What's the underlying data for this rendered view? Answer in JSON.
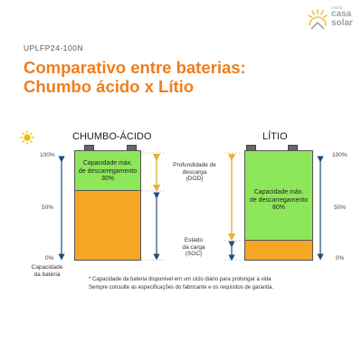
{
  "header": {
    "model": "UPLFP24-100N",
    "title_line1": "Comparativo entre baterias:",
    "title_line2": "Chumbo ácido x Lítio"
  },
  "logo": {
    "small": "minha",
    "line1": "casa",
    "line2": "solar"
  },
  "batteries": {
    "lead": {
      "title": "CHUMBO-ÁCIDO",
      "capacity_line1": "Capacidade máx.",
      "capacity_line2": "de descarregamento",
      "capacity_value": "30%",
      "dod_fraction": 0.3
    },
    "lithium": {
      "title": "LÍTIO",
      "capacity_line1": "Capacidade máx.",
      "capacity_line2": "de descarregamento",
      "capacity_value": "80%",
      "dod_fraction": 0.8
    }
  },
  "scale": {
    "top": "100%",
    "mid": "50%",
    "bottom": "0%"
  },
  "labels": {
    "dod_line1": "Profundidade de",
    "dod_line2": "descarga",
    "dod_line3": "(DOD)",
    "soc_line1": "Estado",
    "soc_line2": "da carga",
    "soc_line3": "(SOC)",
    "battery_capacity_line1": "Capacidade",
    "battery_capacity_line2": "da bateria"
  },
  "notes": {
    "line1": "* Capacidade da bateria disponível em um ciclo diário para prolongar a vida",
    "line2": "Sempre consulte as especificações do fabricante e os requisitos de garantia."
  },
  "colors": {
    "accent": "#f07d1a",
    "green": "#8ee65a",
    "orange": "#f5a623",
    "arrow": "#1f4e79",
    "dashed": "#e8b23a"
  },
  "icons": {
    "sun": "sun-icon",
    "logo": "sun-house-logo-icon"
  }
}
